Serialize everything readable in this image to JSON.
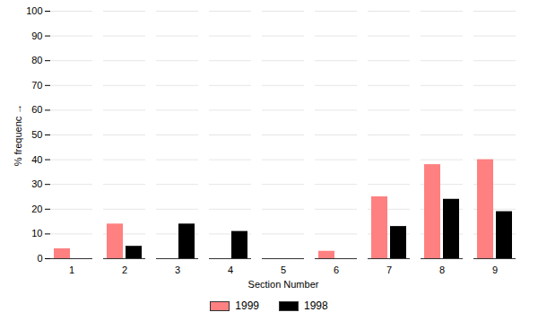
{
  "chart_data": {
    "type": "bar",
    "xlabel": "Section Number",
    "ylabel": "% frequenc",
    "categories": [
      1,
      2,
      3,
      4,
      5,
      6,
      7,
      8,
      9
    ],
    "series": [
      {
        "name": "1999",
        "color": "#ff8080",
        "values": [
          4,
          14,
          0,
          0,
          0,
          3,
          25,
          38,
          40
        ]
      },
      {
        "name": "1998",
        "color": "#000000",
        "values": [
          0,
          5,
          14,
          11,
          0,
          0,
          13,
          24,
          19
        ]
      }
    ],
    "ylim": [
      0,
      100
    ],
    "yticks": [
      0,
      10,
      20,
      30,
      40,
      50,
      60,
      70,
      80,
      90,
      100
    ],
    "grid": true,
    "legend": "bottom"
  }
}
